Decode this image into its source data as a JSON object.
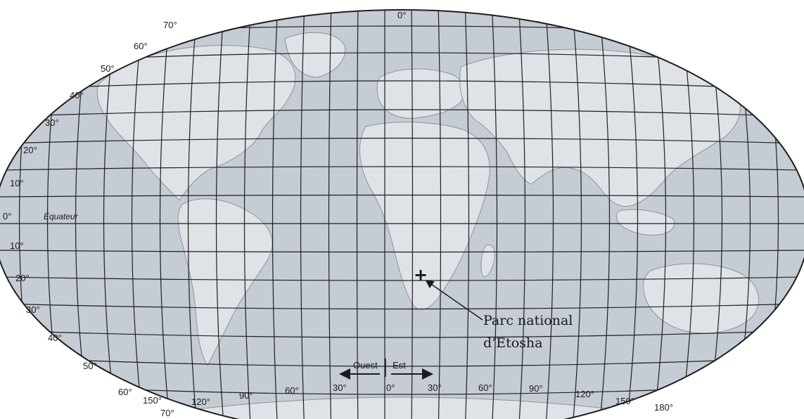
{
  "map": {
    "colors": {
      "ocean": "#c6ccd4",
      "land": "#dfe3e8",
      "grid": "#1f1f1f",
      "coast": "#8c939c"
    },
    "equator_label": "Équateur",
    "lat_labels_north": [
      "70°",
      "60°",
      "50°",
      "40°",
      "30°",
      "20°",
      "10°"
    ],
    "lat_label_equator": "0°",
    "lat_labels_south": [
      "10°",
      "20°",
      "30°",
      "40°",
      "50°",
      "60°",
      "70°"
    ],
    "lon_label_top": "0°",
    "lon_labels_bottom": [
      "150°",
      "120°",
      "90°",
      "60°",
      "30°",
      "0°",
      "30°",
      "60°",
      "90°",
      "120°",
      "150°",
      "180°"
    ],
    "direction_west": "Ouest",
    "direction_east": "Est",
    "marker_symbol": "+",
    "callout_line1": "Parc national",
    "callout_line2": "d’Etosha"
  }
}
